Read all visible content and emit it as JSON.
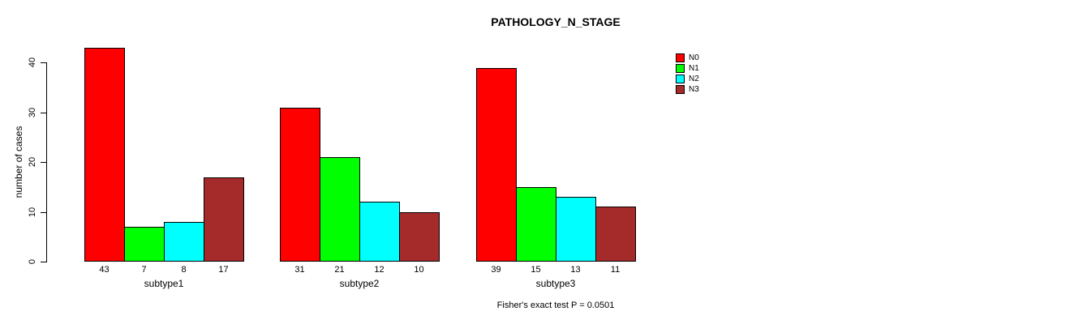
{
  "chart_data": {
    "type": "bar",
    "title": "PATHOLOGY_N_STAGE",
    "ylabel": "number of cases",
    "xlabel": "",
    "annotation": "Fisher's exact test P = 0.0501",
    "categories": [
      "subtype1",
      "subtype2",
      "subtype3"
    ],
    "series": [
      {
        "name": "N0",
        "color": "#FF0000",
        "values": [
          43,
          31,
          39
        ]
      },
      {
        "name": "N1",
        "color": "#00FF00",
        "values": [
          7,
          21,
          15
        ]
      },
      {
        "name": "N2",
        "color": "#00FFFF",
        "values": [
          8,
          12,
          13
        ]
      },
      {
        "name": "N3",
        "color": "#A52A2A",
        "values": [
          17,
          10,
          11
        ]
      }
    ],
    "bar_value_labels": [
      [
        43,
        7,
        8,
        17
      ],
      [
        31,
        21,
        12,
        10
      ],
      [
        39,
        15,
        13,
        11
      ]
    ],
    "yticks": [
      0,
      10,
      20,
      30,
      40
    ],
    "ylim": [
      0,
      43
    ],
    "grid": false,
    "legend": {
      "position": "top-right",
      "entries": [
        "N0",
        "N1",
        "N2",
        "N3"
      ]
    },
    "colors": {
      "background": "#FFFFFF",
      "bar_border": "#000000",
      "axis": "#000000",
      "text": "#000000"
    }
  }
}
